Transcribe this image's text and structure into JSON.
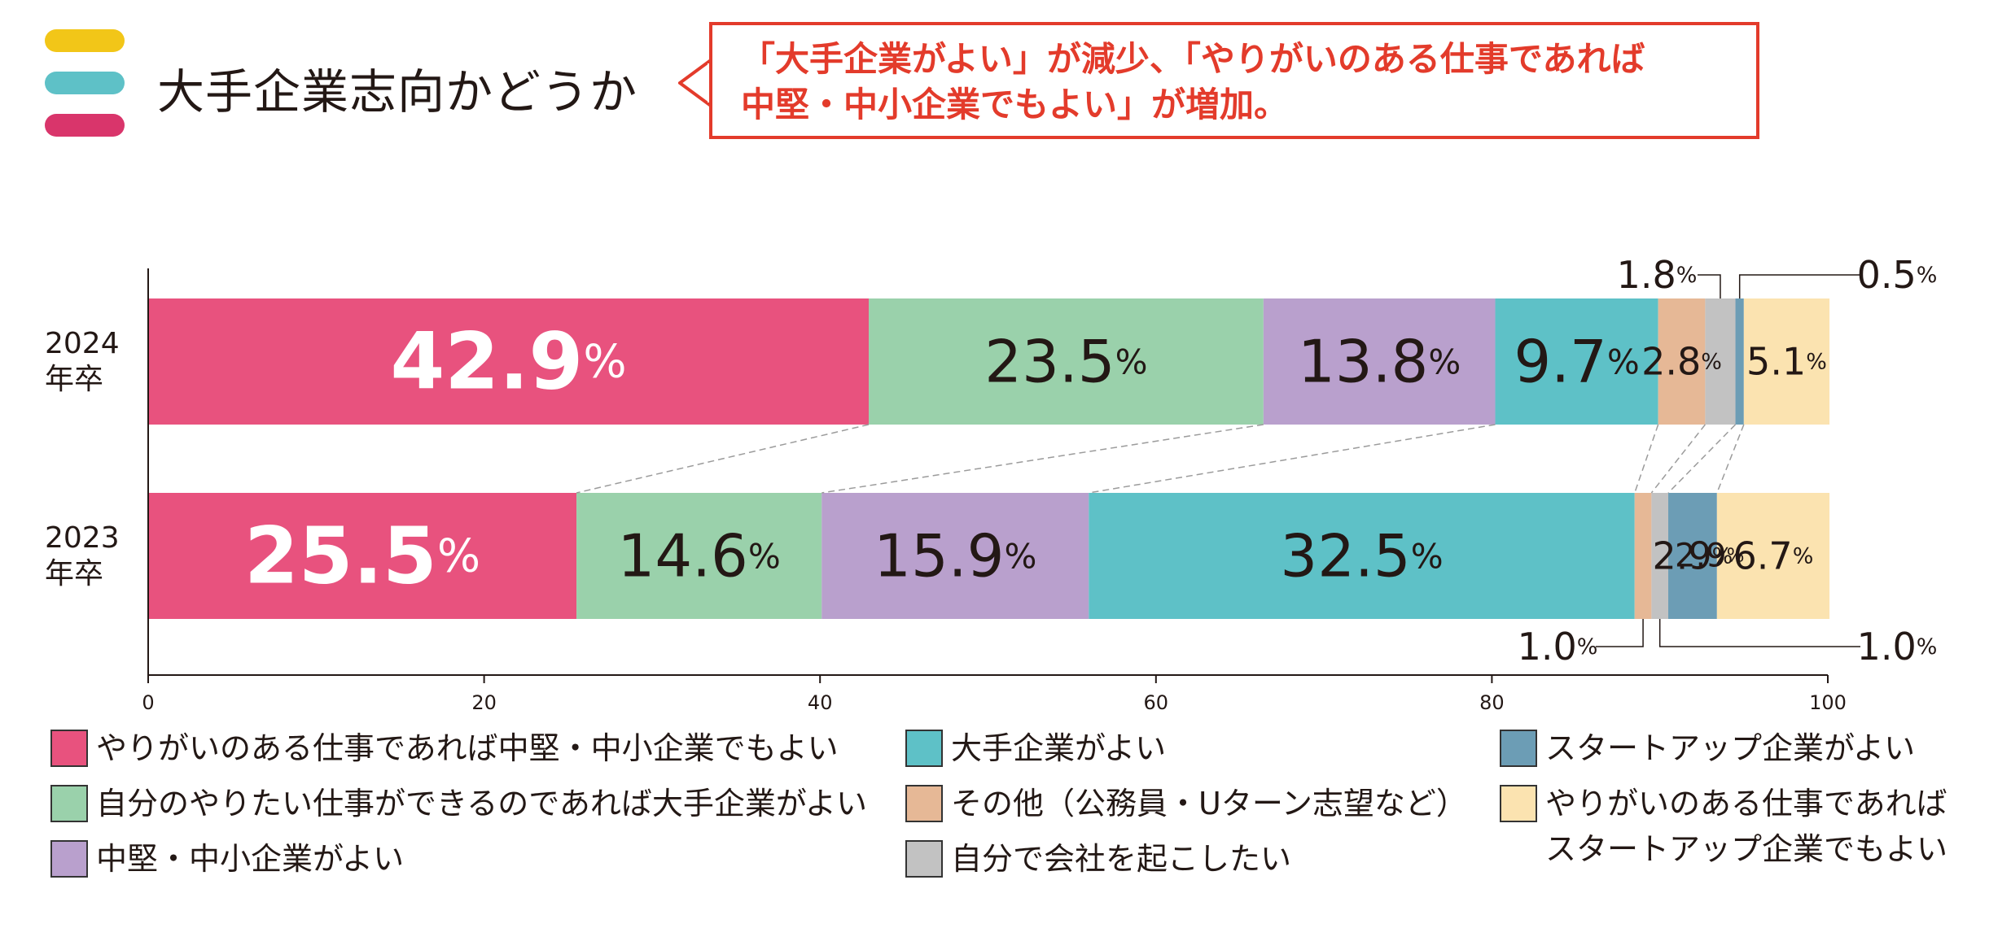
{
  "heading": "大手企業志向かどうか",
  "callout": {
    "line1": "「大手企業がよい」が減少、「やりがいのある仕事であれば",
    "line2": "中堅・中小企業でもよい」が増加。"
  },
  "colors": {
    "stripe_1": "#f2c618",
    "stripe_2": "#5ec1c7",
    "stripe_3": "#d9356b",
    "callout": "#e33b2b"
  },
  "chart_data": {
    "type": "bar",
    "orientation": "horizontal",
    "stacked": true,
    "categories": [
      "2024\n年卒",
      "2023\n年卒"
    ],
    "xlim": [
      0,
      100
    ],
    "xticks": [
      0,
      20,
      40,
      60,
      80,
      100
    ],
    "unit": "%",
    "grid": false,
    "legend_position": "bottom",
    "series": [
      {
        "name": "やりがいのある仕事であれば中堅・中小企業でもよい",
        "color": "#e8527e",
        "values": [
          42.9,
          25.5
        ],
        "labels": [
          "42.9",
          "25.5"
        ]
      },
      {
        "name": "自分のやりたい仕事ができるのであれば大手企業がよい",
        "color": "#9ad1ab",
        "values": [
          23.5,
          14.6
        ],
        "labels": [
          "23.5",
          "14.6"
        ]
      },
      {
        "name": "中堅・中小企業がよい",
        "color": "#b9a0cd",
        "values": [
          13.8,
          15.9
        ],
        "labels": [
          "13.8",
          "15.9"
        ]
      },
      {
        "name": "大手企業がよい",
        "color": "#5ec1c7",
        "values": [
          9.7,
          32.5
        ],
        "labels": [
          "9.7",
          "32.5"
        ]
      },
      {
        "name": "その他（公務員・Uターン志望など）",
        "color": "#e6b896",
        "values": [
          2.8,
          1.0
        ],
        "labels": [
          "2.8",
          "1.0"
        ]
      },
      {
        "name": "自分で会社を起こしたい",
        "color": "#c2c2c2",
        "values": [
          1.8,
          1.0
        ],
        "labels": [
          "1.8",
          "1.0"
        ]
      },
      {
        "name": "スタートアップ企業がよい",
        "color": "#6c9db5",
        "values": [
          0.5,
          2.9
        ],
        "labels": [
          "0.5",
          "2.9"
        ]
      },
      {
        "name": "やりがいのある仕事であれば\nスタートアップ企業でもよい",
        "color": "#fbe3b0",
        "values": [
          5.1,
          6.7
        ],
        "labels": [
          "5.1",
          "6.7"
        ]
      }
    ]
  }
}
